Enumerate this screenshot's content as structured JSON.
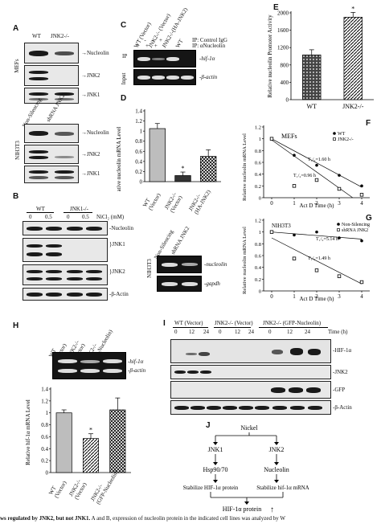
{
  "panels": {
    "a": "A",
    "b": "B",
    "c": "C",
    "d": "D",
    "e": "E",
    "f": "F",
    "g": "G",
    "h": "H",
    "i": "I",
    "j": "J"
  },
  "panel_a": {
    "col_wt": "WT",
    "col_jnk2": "JNK2-/-",
    "group_mefs": "MEFs",
    "group_nih": "NIH3T3",
    "col_nonsil": "Non-Silencing",
    "col_shrna": "shRNA JNK2",
    "bands_top": [
      "Nucleolin",
      "JNK2",
      "JNK1"
    ],
    "bands_bottom": [
      "Nucleolin",
      "JNK2",
      "JNK1"
    ]
  },
  "panel_b": {
    "group_wt": "WT",
    "group_jnk1": "JNK1-/-",
    "doses": [
      "0",
      "0.5",
      "0",
      "0.5"
    ],
    "unit": "NiCl₂ (mM)",
    "bands": [
      "Nucleolin",
      "JNK1",
      "JNK2",
      "β-Actin"
    ],
    "gel_group": "NIH3T3",
    "gel_cols": [
      "Non-Silencing",
      "shRNA JNK2"
    ],
    "gel_bands": [
      "nucleolin",
      "gapdh"
    ]
  },
  "panel_c": {
    "cols": [
      "WT (Vector)",
      "JNK2-/- (Vector)",
      "JNK2-/-(HA-JNK2)",
      "WT"
    ],
    "ip_control": "IP: Control IgG",
    "ip_nucleolin": "IP: αNucleolin",
    "signs_control": [
      "-",
      "-",
      "-",
      "+"
    ],
    "signs_nucleolin": [
      "+",
      "+",
      "+",
      "-"
    ],
    "row_ip": "IP",
    "row_input": "Input",
    "band_ip": "hif-1α",
    "band_input": "β-actin"
  },
  "panel_d": {
    "ylabel": "Relative nucleolin mRNA Level",
    "star": "*"
  },
  "panel_e": {
    "ylabel": "Relative nucleolin Promoter Activity",
    "star": "*"
  },
  "panel_f": {
    "ylabel": "Relative nucleolin mRNA Level",
    "group": "MEFs",
    "legend": [
      "WT",
      "JNK2-/-"
    ],
    "t_wt": "T₁/₂=1.60 h",
    "t_ko": "T₁/₂=0.96 h",
    "xlabel": "Act D  Time  (h)"
  },
  "panel_g": {
    "ylabel": "Relative nucleolin mRNA Level",
    "group": "NIH3T3",
    "legend": [
      "Non-Silencing",
      "shRNA JNK2"
    ],
    "t_ns": "T₁/₂=5.14 h",
    "t_sh": "T₁/₂=1.49 h",
    "xlabel": "Act D  Time  (h)"
  },
  "panel_h": {
    "cols": [
      "WT (Vector)",
      "JNK2-/- (Vector)",
      "JNK2-/- (GFP-Nucleolin)"
    ],
    "gel_bands": [
      "hif-1α",
      "β-actin"
    ],
    "ylabel": "Relative hif-1α mRNA Level",
    "star": "*"
  },
  "panel_i": {
    "groups": [
      "WT (Vector)",
      "JNK2-/- (Vector)",
      "JNK2-/- (GFP-Nucleolin)"
    ],
    "times": [
      "0",
      "12",
      "24",
      "0",
      "12",
      "24",
      "0",
      "12",
      "24"
    ],
    "time_unit": "Time (h)",
    "bands": [
      "HIF-1α",
      "JNK2",
      "GFP",
      "β-Actin"
    ]
  },
  "panel_j": {
    "nickel": "Nickel",
    "jnk1": "JNK1",
    "jnk2": "JNK2",
    "hsp": "Hsp90/70",
    "nucleolin": "Nucleolin",
    "stab_left": "Stabilize HIF-1α protein",
    "stab_right": "Stabilize hif-1α mRNA",
    "result": "HIF-1α protein",
    "result_arrow": "↑"
  },
  "caption": {
    "bold": "ws regulated by JNK2, but not JNK1.",
    "rest": " A and B, expression of nucleolin protein in the indicated cell lines was analyzed by W"
  },
  "chart_data": [
    {
      "type": "bar",
      "panel": "D",
      "categories": [
        "WT (Vector)",
        "JNK2-/- (Vector)",
        "JNK2-/- (HA-JNK2)"
      ],
      "values": [
        1.05,
        0.12,
        0.5
      ],
      "errors": [
        0.1,
        0.07,
        0.13
      ],
      "ylim": [
        0,
        1.4
      ],
      "yticks": [
        "0",
        "0.2",
        "0.4",
        "0.6",
        "0.8",
        "1",
        "1.2",
        "1.4"
      ],
      "ylabel": "Relative nucleolin mRNA Level"
    },
    {
      "type": "bar",
      "panel": "E",
      "categories": [
        "WT",
        "JNK2-/-"
      ],
      "values": [
        1030,
        1900
      ],
      "errors": [
        120,
        110
      ],
      "ylim": [
        0,
        2000
      ],
      "yticks": [
        "0",
        "400",
        "800",
        "1200",
        "1600",
        "2000"
      ],
      "ylabel": "Relative nucleolin Promoter Activity"
    },
    {
      "type": "scatter",
      "panel": "F",
      "x_ticks": [
        "0",
        "1",
        "2",
        "3",
        "4"
      ],
      "ylim": [
        0,
        1.2
      ],
      "yticks": [
        "0",
        "0.2",
        "0.4",
        "0.6",
        "0.8",
        "1",
        "1.2"
      ],
      "series": [
        {
          "name": "WT",
          "x": [
            0,
            1,
            2,
            3,
            4
          ],
          "y": [
            1.0,
            0.72,
            0.55,
            0.38,
            0.2
          ]
        },
        {
          "name": "JNK2-/-",
          "x": [
            0,
            1,
            2,
            3,
            4
          ],
          "y": [
            1.0,
            0.2,
            0.3,
            0.15,
            0.05
          ]
        }
      ]
    },
    {
      "type": "scatter",
      "panel": "G",
      "x_ticks": [
        "0",
        "1",
        "2",
        "3",
        "4"
      ],
      "ylim": [
        0,
        1.2
      ],
      "yticks": [
        "0",
        "0.2",
        "0.4",
        "0.6",
        "0.8",
        "1",
        "1.2"
      ],
      "series": [
        {
          "name": "Non-Silencing",
          "x": [
            0,
            1,
            2,
            3,
            4
          ],
          "y": [
            1.0,
            0.95,
            1.0,
            0.9,
            0.85
          ]
        },
        {
          "name": "shRNA JNK2",
          "x": [
            0,
            1,
            2,
            3,
            4
          ],
          "y": [
            1.0,
            0.55,
            0.35,
            0.25,
            0.15
          ]
        }
      ]
    },
    {
      "type": "bar",
      "panel": "H",
      "categories": [
        "WT (Vector)",
        "JNK2-/- (Vector)",
        "JNK2-/- (GFP-Nucleolin)"
      ],
      "values": [
        1.0,
        0.57,
        1.05
      ],
      "errors": [
        0.05,
        0.08,
        0.2
      ],
      "ylim": [
        0,
        1.4
      ],
      "yticks": [
        "0",
        "0.2",
        "0.4",
        "0.6",
        "0.8",
        "1",
        "1.2",
        "1.4"
      ],
      "ylabel": "Relative hif-1α mRNA Level"
    }
  ]
}
